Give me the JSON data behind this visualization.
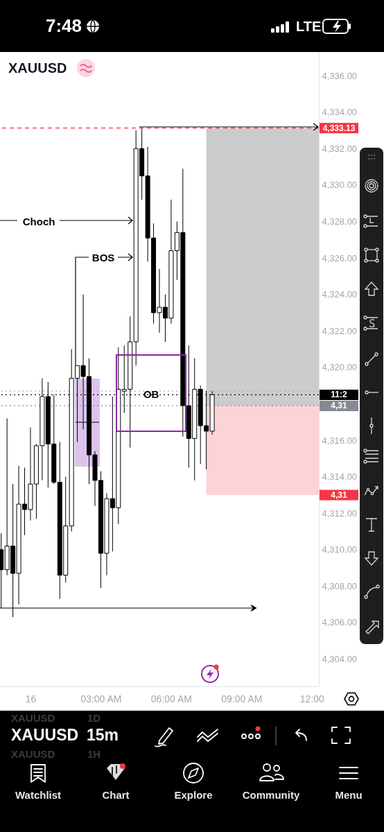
{
  "chart_data": {
    "type": "candlestick",
    "title": "XAUUSD",
    "x": [
      "--12-15T22:45",
      "--12-15T23:00",
      "--12-15T23:15",
      "--12-15T23:30",
      "--12-15T23:45",
      "--12-16T00:00",
      "--12-16T00:15",
      "--12-16T00:30",
      "--12-16T00:45",
      "--12-16T01:00",
      "--12-16T01:15",
      "--12-16T01:30",
      "--12-16T01:45",
      "--12-16T02:00",
      "--12-16T02:15",
      "--12-16T02:30",
      "--12-16T02:45",
      "--12-16T03:00",
      "--12-16T03:15",
      "--12-16T03:30",
      "--12-16T03:45",
      "--12-16T04:00",
      "--12-16T04:15",
      "--12-16T04:30",
      "--12-16T04:45",
      "--12-16T05:00",
      "--12-16T05:15",
      "--12-16T05:30",
      "--12-16T05:45",
      "--12-16T06:00",
      "--12-16T06:15",
      "--12-16T06:30",
      "--12-16T06:45",
      "--12-16T07:00",
      "--12-16T07:15",
      "--12-16T07:30",
      "--12-16T07:45"
    ],
    "ohlc": [
      [
        4310.0,
        4310.9,
        4306.8,
        4308.9
      ],
      [
        4308.9,
        4317.2,
        4308.6,
        4310.2
      ],
      [
        4310.2,
        4313.6,
        4306.3,
        4308.7
      ],
      [
        4308.7,
        4314.6,
        4307.0,
        4312.5
      ],
      [
        4312.5,
        4314.5,
        4310.8,
        4312.2
      ],
      [
        4312.2,
        4316.7,
        4311.6,
        4313.6
      ],
      [
        4313.6,
        4315.8,
        4311.7,
        4315.7
      ],
      [
        4315.7,
        4319.4,
        4313.8,
        4318.4
      ],
      [
        4318.4,
        4319.2,
        4313.4,
        4315.8
      ],
      [
        4315.8,
        4318.5,
        4313.6,
        4313.7
      ],
      [
        4313.7,
        4315.9,
        4307.3,
        4308.6
      ],
      [
        4308.6,
        4314.0,
        4308.2,
        4311.3
      ],
      [
        4311.3,
        4321.0,
        4311.0,
        4319.4
      ],
      [
        4319.4,
        4320.1,
        4315.9,
        4320.1
      ],
      [
        4320.1,
        4324.0,
        4316.6,
        4319.5
      ],
      [
        4319.5,
        4320.5,
        4313.6,
        4315.2
      ],
      [
        4315.2,
        4315.4,
        4312.4,
        4313.8
      ],
      [
        4313.8,
        4314.3,
        4307.9,
        4309.8
      ],
      [
        4309.8,
        4313.1,
        4308.6,
        4312.8
      ],
      [
        4312.8,
        4318.4,
        4309.9,
        4312.3
      ],
      [
        4312.3,
        4321.1,
        4311.4,
        4318.8
      ],
      [
        4318.7,
        4321.2,
        4317.5,
        4318.8
      ],
      [
        4318.8,
        4322.8,
        4315.6,
        4321.4
      ],
      [
        4321.4,
        4333.0,
        4320.1,
        4332.0
      ],
      [
        4332.0,
        4333.1,
        4329.2,
        4330.5
      ],
      [
        4330.5,
        4332.1,
        4325.8,
        4327.1
      ],
      [
        4327.1,
        4327.9,
        4322.4,
        4323.0
      ],
      [
        4323.0,
        4325.4,
        4321.9,
        4323.3
      ],
      [
        4323.3,
        4324.0,
        4321.4,
        4322.7
      ],
      [
        4322.7,
        4329.2,
        4322.4,
        4326.4
      ],
      [
        4326.4,
        4328.0,
        4324.8,
        4327.4
      ],
      [
        4327.4,
        4330.9,
        4316.2,
        4317.9
      ],
      [
        4317.9,
        4321.2,
        4314.5,
        4316.1
      ],
      [
        4316.1,
        4320.5,
        4313.8,
        4318.8
      ],
      [
        4318.8,
        4319.0,
        4314.7,
        4316.8
      ],
      [
        4316.8,
        4318.7,
        4314.4,
        4316.5
      ],
      [
        4316.5,
        4318.7,
        4316.3,
        4318.5
      ]
    ],
    "xlim": [
      "--12-15T22:42",
      "--12-16T12:18"
    ],
    "xticks": [
      {
        "value": "--12-16T00:00",
        "label": "16"
      },
      {
        "value": "--12-16T03:00",
        "label": "03:00 AM"
      },
      {
        "value": "--12-16T06:00",
        "label": "06:00 AM"
      },
      {
        "value": "--12-16T09:00",
        "label": "09:00 AM"
      },
      {
        "value": "--12-16T12:00",
        "label": "12:00"
      }
    ],
    "ylim": [
      4302.5,
      4337.3
    ],
    "yticks": [
      {
        "value": 4336,
        "label": "4,336.00"
      },
      {
        "value": 4334,
        "label": "4,334.00"
      },
      {
        "value": 4332,
        "label": "4,332.00"
      },
      {
        "value": 4330,
        "label": "4,330.00"
      },
      {
        "value": 4328,
        "label": "4,328.00"
      },
      {
        "value": 4326,
        "label": "4,326.00"
      },
      {
        "value": 4324,
        "label": "4,324.00"
      },
      {
        "value": 4322,
        "label": "4,322.00"
      },
      {
        "value": 4320,
        "label": "4,320.00"
      },
      {
        "value": 4316,
        "label": "4,316.00"
      },
      {
        "value": 4314,
        "label": "4,314.00"
      },
      {
        "value": 4312,
        "label": "4,312.00"
      },
      {
        "value": 4310,
        "label": "4,310.00"
      },
      {
        "value": 4308,
        "label": "4,308.00"
      },
      {
        "value": 4306,
        "label": "4,306.00"
      },
      {
        "value": 4304,
        "label": "4,304.00"
      }
    ],
    "ref_lines": [
      {
        "axis": "y",
        "value": 4333.13,
        "label": "4,333.13",
        "color": "#f23645",
        "line_style": "dashed"
      },
      {
        "axis": "y",
        "value": 4318.7,
        "color": "#f48fb1",
        "line_style": "dotted"
      },
      {
        "axis": "y",
        "value": 4318.5,
        "color": "#000000",
        "line_style": "dotted"
      },
      {
        "axis": "y",
        "value": 4317.9,
        "color": "#7e7ef0",
        "line_style": "dotted"
      }
    ],
    "bands": [
      {
        "axis": "y",
        "from": 4317.9,
        "to": 4333.13,
        "color": "#131722"
      },
      {
        "axis": "y",
        "from": 4313.0,
        "to": 4317.9,
        "label": "4,31",
        "color": "#f23645"
      }
    ],
    "annotations": [
      "7:48",
      "LTE",
      {
        "text": "Choch",
        "x": "--12-16T04:21",
        "y": 4328.0
      },
      {
        "text": "BOS",
        "x": "--12-16T04:21",
        "y": 4326.0
      },
      {
        "text": "OB",
        "x": "--12-16T05:09",
        "y": 4318.5
      },
      "11:2",
      "4,31",
      "XAUUSD",
      "1D",
      "XAUUSD",
      "15m",
      "XAUUSD",
      "1H",
      "Watchlist",
      "Chart",
      "Explore",
      "Community",
      "Menu"
    ]
  }
}
